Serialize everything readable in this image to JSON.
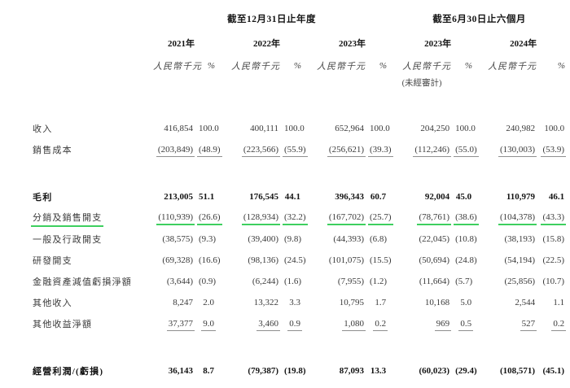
{
  "colors": {
    "highlight_green": "#3ecf5f",
    "rule_gray": "#8f8f8f"
  },
  "table": {
    "period_headers": [
      "截至12月31日止年度",
      "截至6月30日止六個月"
    ],
    "year_headers": [
      "2021年",
      "2022年",
      "2023年",
      "2023年",
      "2024年"
    ],
    "unit_label": "人民幣千元",
    "percent_label": "%",
    "unaudited_label": "(未經審計)",
    "rows": [
      {
        "label": "收入",
        "emphasis": false,
        "underline": "none",
        "section_break_before": true,
        "values": [
          "416,854",
          "100.0",
          "400,111",
          "100.0",
          "652,964",
          "100.0",
          "204,250",
          "100.0",
          "240,982",
          "100.0"
        ]
      },
      {
        "label": "銷售成本",
        "emphasis": false,
        "underline": "gray",
        "section_break_before": false,
        "values": [
          "(203,849)",
          "(48.9)",
          "(223,566)",
          "(55.9)",
          "(256,621)",
          "(39.3)",
          "(112,246)",
          "(55.0)",
          "(130,003)",
          "(53.9)"
        ]
      },
      {
        "label": "毛利",
        "emphasis": true,
        "underline": "none",
        "section_break_before": true,
        "values": [
          "213,005",
          "51.1",
          "176,545",
          "44.1",
          "396,343",
          "60.7",
          "92,004",
          "45.0",
          "110,979",
          "46.1"
        ]
      },
      {
        "label": "分銷及銷售開支",
        "emphasis": false,
        "underline": "green",
        "section_break_before": false,
        "values": [
          "(110,939)",
          "(26.6)",
          "(128,934)",
          "(32.2)",
          "(167,702)",
          "(25.7)",
          "(78,761)",
          "(38.6)",
          "(104,378)",
          "(43.3)"
        ]
      },
      {
        "label": "一般及行政開支",
        "emphasis": false,
        "underline": "none",
        "section_break_before": false,
        "values": [
          "(38,575)",
          "(9.3)",
          "(39,400)",
          "(9.8)",
          "(44,393)",
          "(6.8)",
          "(22,045)",
          "(10.8)",
          "(38,193)",
          "(15.8)"
        ]
      },
      {
        "label": "研發開支",
        "emphasis": false,
        "underline": "none",
        "section_break_before": false,
        "values": [
          "(69,328)",
          "(16.6)",
          "(98,136)",
          "(24.5)",
          "(101,075)",
          "(15.5)",
          "(50,694)",
          "(24.8)",
          "(54,194)",
          "(22.5)"
        ]
      },
      {
        "label": "金融資產減值虧損淨額",
        "emphasis": false,
        "underline": "none",
        "section_break_before": false,
        "values": [
          "(3,644)",
          "(0.9)",
          "(6,244)",
          "(1.6)",
          "(7,955)",
          "(1.2)",
          "(11,664)",
          "(5.7)",
          "(25,856)",
          "(10.7)"
        ]
      },
      {
        "label": "其他收入",
        "emphasis": false,
        "underline": "none",
        "section_break_before": false,
        "values": [
          "8,247",
          "2.0",
          "13,322",
          "3.3",
          "10,795",
          "1.7",
          "10,168",
          "5.0",
          "2,544",
          "1.1"
        ]
      },
      {
        "label": "其他收益淨額",
        "emphasis": false,
        "underline": "gray",
        "section_break_before": false,
        "values": [
          "37,377",
          "9.0",
          "3,460",
          "0.9",
          "1,080",
          "0.2",
          "969",
          "0.5",
          "527",
          "0.2"
        ]
      },
      {
        "label": "經營利潤/(虧損)",
        "emphasis": true,
        "underline": "none",
        "section_break_before": true,
        "values": [
          "36,143",
          "8.7",
          "(79,387)",
          "(19.8)",
          "87,093",
          "13.3",
          "(60,023)",
          "(29.4)",
          "(108,571)",
          "(45.1)"
        ]
      }
    ]
  }
}
